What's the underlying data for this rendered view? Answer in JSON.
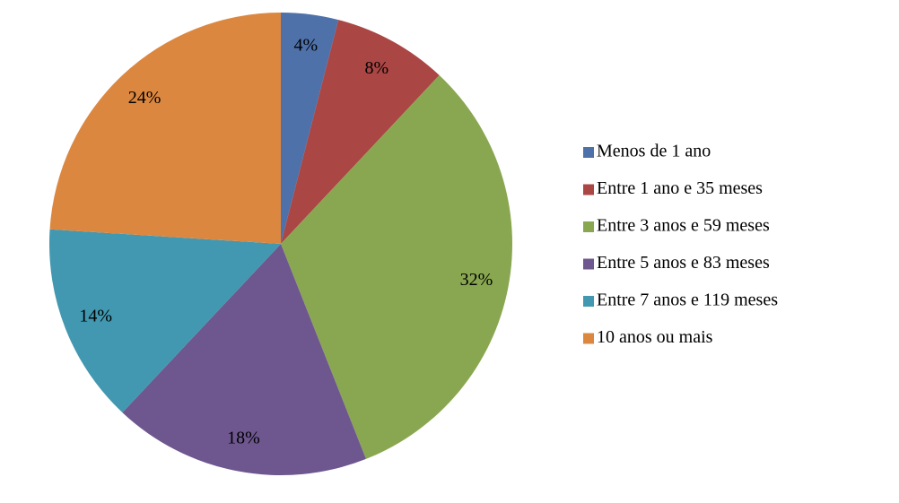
{
  "chart_data": {
    "type": "pie",
    "categories": [
      "Menos de 1 ano",
      "Entre 1 ano e 35 meses",
      "Entre 3 anos e 59 meses",
      "Entre 5 anos e 83 meses",
      "Entre 7 anos e 119 meses",
      "10 anos ou mais"
    ],
    "values": [
      4,
      8,
      32,
      18,
      14,
      24
    ],
    "value_labels": [
      "4%",
      "8%",
      "32%",
      "18%",
      "14%",
      "24%"
    ],
    "colors": [
      "#4e71aa",
      "#aa4644",
      "#89a751",
      "#6e568f",
      "#4198b0",
      "#dc8740"
    ],
    "legend": "right"
  }
}
